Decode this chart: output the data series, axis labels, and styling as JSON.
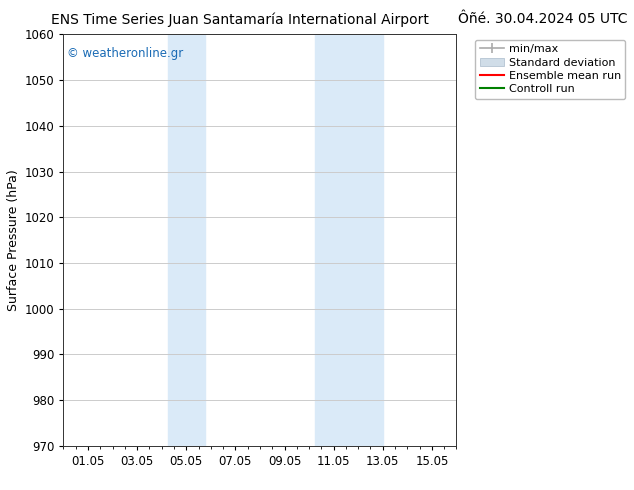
{
  "title_left": "ENS Time Series Juan Santamaría International Airport",
  "title_right": "Ôñé. 30.04.2024 05 UTC",
  "ylabel": "Surface Pressure (hPa)",
  "ylim": [
    970,
    1060
  ],
  "yticks": [
    970,
    980,
    990,
    1000,
    1010,
    1020,
    1030,
    1040,
    1050,
    1060
  ],
  "xtick_positions": [
    1,
    3,
    5,
    7,
    9,
    11,
    13,
    15
  ],
  "xtick_labels": [
    "01.05",
    "03.05",
    "05.05",
    "07.05",
    "09.05",
    "11.05",
    "13.05",
    "15.05"
  ],
  "xlim": [
    0,
    16
  ],
  "shaded_regions": [
    {
      "xstart": 4.25,
      "xend": 5.75
    },
    {
      "xstart": 10.25,
      "xend": 13.0
    }
  ],
  "shaded_color": "#daeaf8",
  "watermark_text": "© weatheronline.gr",
  "watermark_color": "#1a6bb5",
  "background_color": "#ffffff",
  "grid_color": "#cccccc",
  "title_fontsize": 10,
  "tick_fontsize": 8.5,
  "ylabel_fontsize": 9,
  "legend_fontsize": 8
}
